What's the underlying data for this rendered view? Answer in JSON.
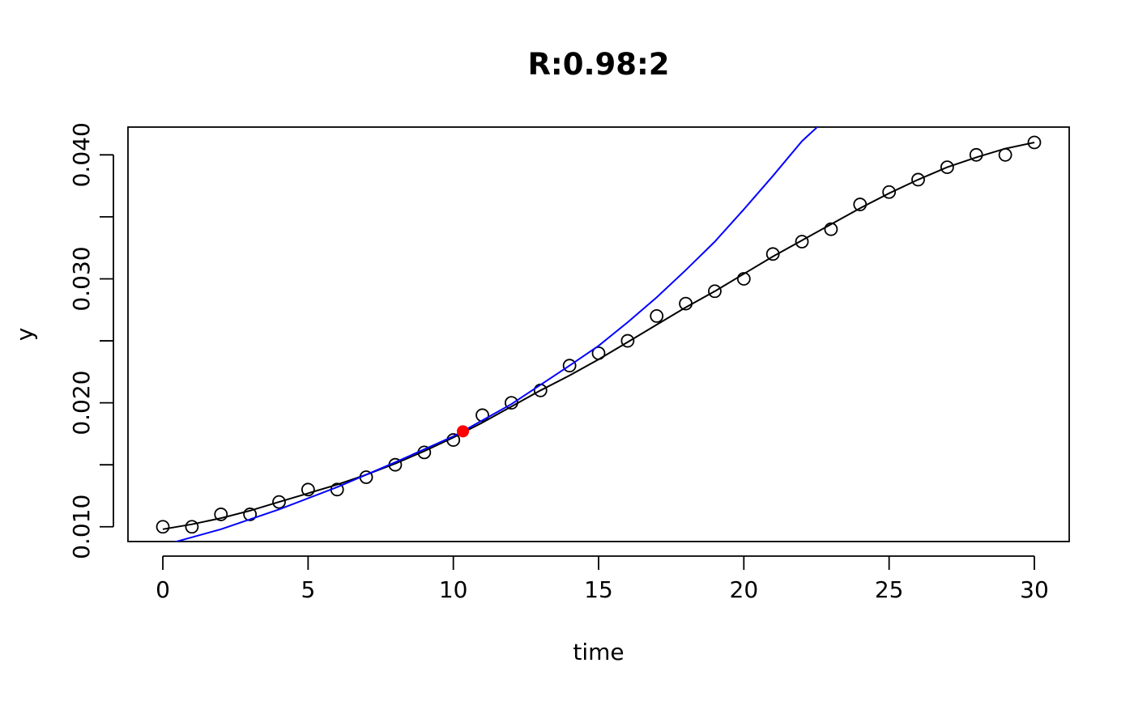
{
  "chart_data": {
    "type": "scatter",
    "title": "R:0.98:2",
    "xlabel": "time",
    "ylabel": "y",
    "xlim": [
      -1.2,
      31.2
    ],
    "ylim": [
      0.00881,
      0.04224
    ],
    "x_ticks": [
      0,
      5,
      10,
      15,
      20,
      25,
      30
    ],
    "x_tick_labels": [
      "0",
      "5",
      "10",
      "15",
      "20",
      "25",
      "30"
    ],
    "y_ticks": [
      0.01,
      0.015,
      0.02,
      0.025,
      0.03,
      0.035,
      0.04
    ],
    "y_tick_labels": [
      "0.010",
      "",
      "0.020",
      "",
      "0.030",
      "",
      "0.040"
    ],
    "grid": false,
    "legend": "none",
    "series": [
      {
        "kind": "points",
        "color": "#000000",
        "x": [
          0,
          1,
          2,
          3,
          4,
          5,
          6,
          7,
          8,
          9,
          10,
          11,
          12,
          13,
          14,
          15,
          16,
          17,
          18,
          19,
          20,
          21,
          22,
          23,
          24,
          25,
          26,
          27,
          28,
          29,
          30
        ],
        "y": [
          0.01,
          0.01,
          0.011,
          0.011,
          0.012,
          0.013,
          0.013,
          0.014,
          0.015,
          0.016,
          0.017,
          0.019,
          0.02,
          0.021,
          0.023,
          0.024,
          0.025,
          0.027,
          0.028,
          0.029,
          0.03,
          0.032,
          0.033,
          0.034,
          0.036,
          0.037,
          0.038,
          0.039,
          0.04,
          0.04,
          0.041
        ]
      },
      {
        "kind": "line",
        "color": "#000000",
        "x": [
          0,
          1,
          2,
          3,
          4,
          5,
          6,
          7,
          8,
          9,
          10,
          11,
          12,
          13,
          14,
          15,
          16,
          17,
          18,
          19,
          20,
          21,
          22,
          23,
          24,
          25,
          26,
          27,
          28,
          29,
          30
        ],
        "y": [
          0.0098,
          0.0102,
          0.0107,
          0.0113,
          0.012,
          0.0127,
          0.0134,
          0.0142,
          0.0151,
          0.0161,
          0.0172,
          0.0184,
          0.0197,
          0.021,
          0.0222,
          0.0235,
          0.0249,
          0.0263,
          0.0277,
          0.029,
          0.0304,
          0.0318,
          0.0331,
          0.0344,
          0.0357,
          0.0369,
          0.038,
          0.039,
          0.0398,
          0.0405,
          0.041
        ]
      },
      {
        "kind": "line",
        "color": "#0000ff",
        "x": [
          0,
          2,
          4,
          6,
          8,
          10,
          10.33,
          12,
          14,
          15,
          16,
          17,
          18,
          19,
          20,
          21,
          22,
          22.6
        ],
        "y": [
          0.0085,
          0.0098,
          0.0114,
          0.0132,
          0.0152,
          0.0173,
          0.0177,
          0.0199,
          0.023,
          0.0246,
          0.0265,
          0.0285,
          0.0307,
          0.033,
          0.0356,
          0.0383,
          0.0411,
          0.0424
        ]
      },
      {
        "kind": "highlight-point",
        "color": "#ff0000",
        "x": [
          10.33
        ],
        "y": [
          0.0177
        ]
      }
    ]
  }
}
